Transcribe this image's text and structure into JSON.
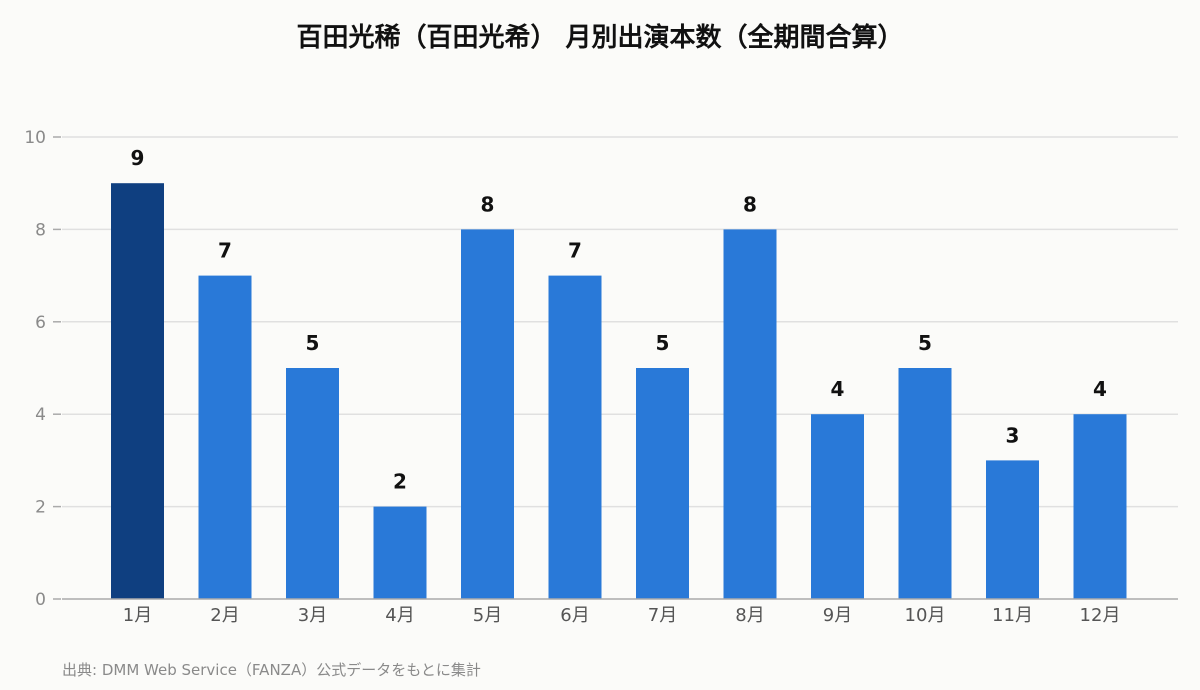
{
  "chart_data": {
    "type": "bar",
    "title": "百田光稀（百田光希） 月別出演本数（全期間合算）",
    "categories": [
      "1月",
      "2月",
      "3月",
      "4月",
      "5月",
      "6月",
      "7月",
      "8月",
      "9月",
      "10月",
      "11月",
      "12月"
    ],
    "values": [
      9,
      7,
      5,
      2,
      8,
      7,
      5,
      8,
      4,
      5,
      3,
      4
    ],
    "highlight_index": 0,
    "ylim": [
      0,
      10
    ],
    "yticks": [
      "0",
      "2",
      "4",
      "6",
      "8",
      "10"
    ],
    "xlabel": "",
    "ylabel": "",
    "grid": true,
    "legend": "none",
    "source": "出典: DMM Web Service（FANZA）公式データをもとに集計",
    "colors": {
      "bar": "#2979d8",
      "highlight": "#0f3f80",
      "grid": "#e0e0e0",
      "axis": "#aaaaaa"
    }
  }
}
